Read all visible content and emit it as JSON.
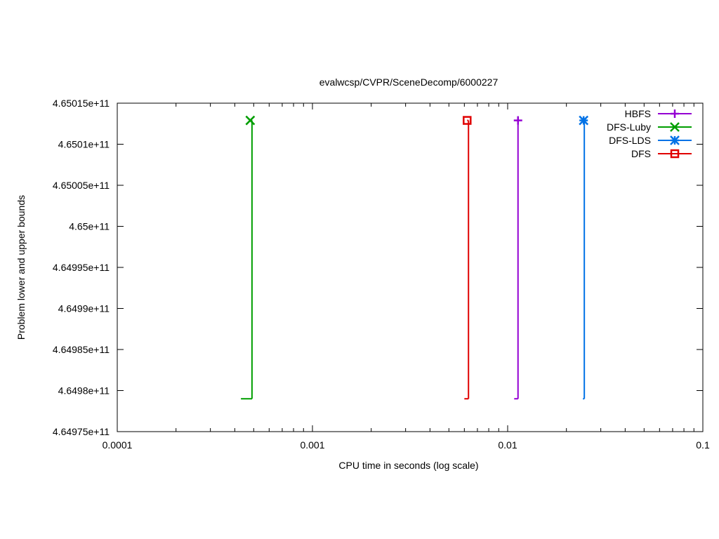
{
  "chart_data": {
    "type": "line",
    "title": "evalwcsp/CVPR/SceneDecomp/6000227",
    "xlabel": "CPU time in seconds (log scale)",
    "ylabel": "Problem lower and upper bounds",
    "x_scale": "log",
    "xlim": [
      0.0001,
      0.1
    ],
    "ylim": [
      464975000000,
      465015000000
    ],
    "x_ticks": [
      {
        "value": 0.0001,
        "label": "0.0001"
      },
      {
        "value": 0.001,
        "label": "0.001"
      },
      {
        "value": 0.01,
        "label": "0.01"
      },
      {
        "value": 0.1,
        "label": "0.1"
      }
    ],
    "y_ticks": [
      {
        "value": 464975000000,
        "label": "4.64975e+11"
      },
      {
        "value": 464980000000,
        "label": "4.6498e+11"
      },
      {
        "value": 464985000000,
        "label": "4.64985e+11"
      },
      {
        "value": 464990000000,
        "label": "4.6499e+11"
      },
      {
        "value": 464995000000,
        "label": "4.64995e+11"
      },
      {
        "value": 465000000000,
        "label": "4.65e+11"
      },
      {
        "value": 465005000000,
        "label": "4.65005e+11"
      },
      {
        "value": 465010000000,
        "label": "4.6501e+11"
      },
      {
        "value": 465015000000,
        "label": "4.65015e+11"
      }
    ],
    "grid": false,
    "legend_position": "top-right",
    "series": [
      {
        "name": "HBFS",
        "color": "#9400d3",
        "marker": "plus",
        "lower": [
          {
            "x": 0.0108,
            "y": 464979000000
          },
          {
            "x": 0.0113,
            "y": 464979000000
          }
        ],
        "upper": {
          "x": 0.0113,
          "y": 465012900000
        }
      },
      {
        "name": "DFS-Luby",
        "color": "#009e00",
        "marker": "cross",
        "lower": [
          {
            "x": 0.00043,
            "y": 464979000000
          },
          {
            "x": 0.00049,
            "y": 464979000000
          }
        ],
        "upper": {
          "x": 0.00048,
          "y": 465012900000
        }
      },
      {
        "name": "DFS-LDS",
        "color": "#0072e6",
        "marker": "star",
        "lower": [
          {
            "x": 0.0243,
            "y": 464979000000
          },
          {
            "x": 0.0247,
            "y": 464979000000
          }
        ],
        "upper": {
          "x": 0.0245,
          "y": 465012900000
        }
      },
      {
        "name": "DFS",
        "color": "#e00000",
        "marker": "square",
        "lower": [
          {
            "x": 0.006,
            "y": 464979000000
          },
          {
            "x": 0.0063,
            "y": 464979000000
          }
        ],
        "upper": {
          "x": 0.0062,
          "y": 465012900000
        }
      }
    ]
  }
}
